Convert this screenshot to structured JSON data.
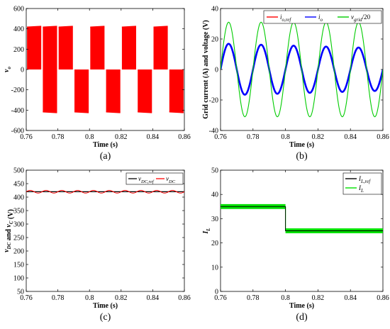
{
  "chart_data": [
    {
      "type": "area",
      "panel_label": "(a)",
      "xlabel": "Time (s)",
      "ylabel": "v",
      "ylabel_sub": "o",
      "xlim": [
        0.76,
        0.86
      ],
      "ylim": [
        -600,
        600
      ],
      "xticks": [
        "0.76",
        "0.78",
        "0.8",
        "0.82",
        "0.84",
        "0.86"
      ],
      "yticks": [
        "-600",
        "-400",
        "-200",
        "0",
        "200",
        "400",
        "600"
      ],
      "series": [
        {
          "color": "#ff0000",
          "pulse_amplitude": 420,
          "positive_half_cycles": [
            [
              0.7605,
              0.7695
            ],
            [
              0.7705,
              0.7795
            ],
            [
              0.7805,
              0.7895
            ],
            [
              0.8005,
              0.8095
            ],
            [
              0.8205,
              0.8295
            ],
            [
              0.8405,
              0.8495
            ]
          ],
          "negative_half_cycles": [
            [
              0.7705,
              0.7795
            ],
            [
              0.7905,
              0.7995
            ],
            [
              0.8105,
              0.8195
            ],
            [
              0.8305,
              0.8395
            ],
            [
              0.8505,
              0.8595
            ]
          ]
        }
      ]
    },
    {
      "type": "line",
      "panel_label": "(b)",
      "xlabel": "Time (s)",
      "ylabel": "Grid current (A) and voltage (V)",
      "xlim": [
        0.76,
        0.86
      ],
      "ylim": [
        -40,
        40
      ],
      "xticks": [
        "0.76",
        "0.78",
        "0.8",
        "0.82",
        "0.84",
        "0.86"
      ],
      "yticks": [
        "-40",
        "-20",
        "0",
        "20",
        "40"
      ],
      "legend_position": "top-right",
      "series": [
        {
          "name_main": "i",
          "name_sub": "o,ref",
          "name_suffix": "",
          "color": "#ff0000",
          "frequency_hz": 50,
          "amplitude": 17
        },
        {
          "name_main": "i",
          "name_sub": "o",
          "name_suffix": "",
          "color": "#0000ff",
          "frequency_hz": 50,
          "amplitude": 17
        },
        {
          "name_main": "v",
          "name_sub": "grid",
          "name_suffix": "/20",
          "color": "#00cc00",
          "frequency_hz": 50,
          "amplitude": 31
        }
      ]
    },
    {
      "type": "line",
      "panel_label": "(c)",
      "xlabel": "Time (s)",
      "ylabel": "v_DC and v_C (V)",
      "xlim": [
        0.76,
        0.86
      ],
      "ylim": [
        50,
        500
      ],
      "xticks": [
        "0.76",
        "0.78",
        "0.8",
        "0.82",
        "0.84",
        "0.86"
      ],
      "yticks": [
        "50",
        "100",
        "150",
        "200",
        "250",
        "300",
        "350",
        "400",
        "450",
        "500"
      ],
      "legend_position": "top-right",
      "series": [
        {
          "name_main": "v",
          "name_sub": "DC,ref",
          "color": "#000000",
          "value": 420
        },
        {
          "name_main": "v",
          "name_sub": "DC",
          "color": "#ff0000",
          "mean": 420,
          "ripple_amplitude": 5,
          "ripple_frequency_hz": 100
        }
      ]
    },
    {
      "type": "line",
      "panel_label": "(d)",
      "xlabel": "Time (s)",
      "ylabel": "I",
      "ylabel_sub": "L",
      "xlim": [
        0.76,
        0.86
      ],
      "ylim": [
        0,
        50
      ],
      "xticks": [
        "0.76",
        "0.78",
        "0.8",
        "0.82",
        "0.84",
        "0.86"
      ],
      "yticks": [
        "0",
        "10",
        "20",
        "30",
        "40",
        "50"
      ],
      "legend_position": "top-right",
      "series": [
        {
          "name_main": "I",
          "name_sub": "L,ref",
          "color": "#000000",
          "segments": [
            [
              0.76,
              0.8,
              35
            ],
            [
              0.8,
              0.86,
              25
            ]
          ]
        },
        {
          "name_main": "I",
          "name_sub": "L",
          "color": "#00e000",
          "segments": [
            [
              0.76,
              0.8,
              35
            ],
            [
              0.8,
              0.86,
              25
            ]
          ],
          "ripple_band": 1
        }
      ]
    }
  ]
}
